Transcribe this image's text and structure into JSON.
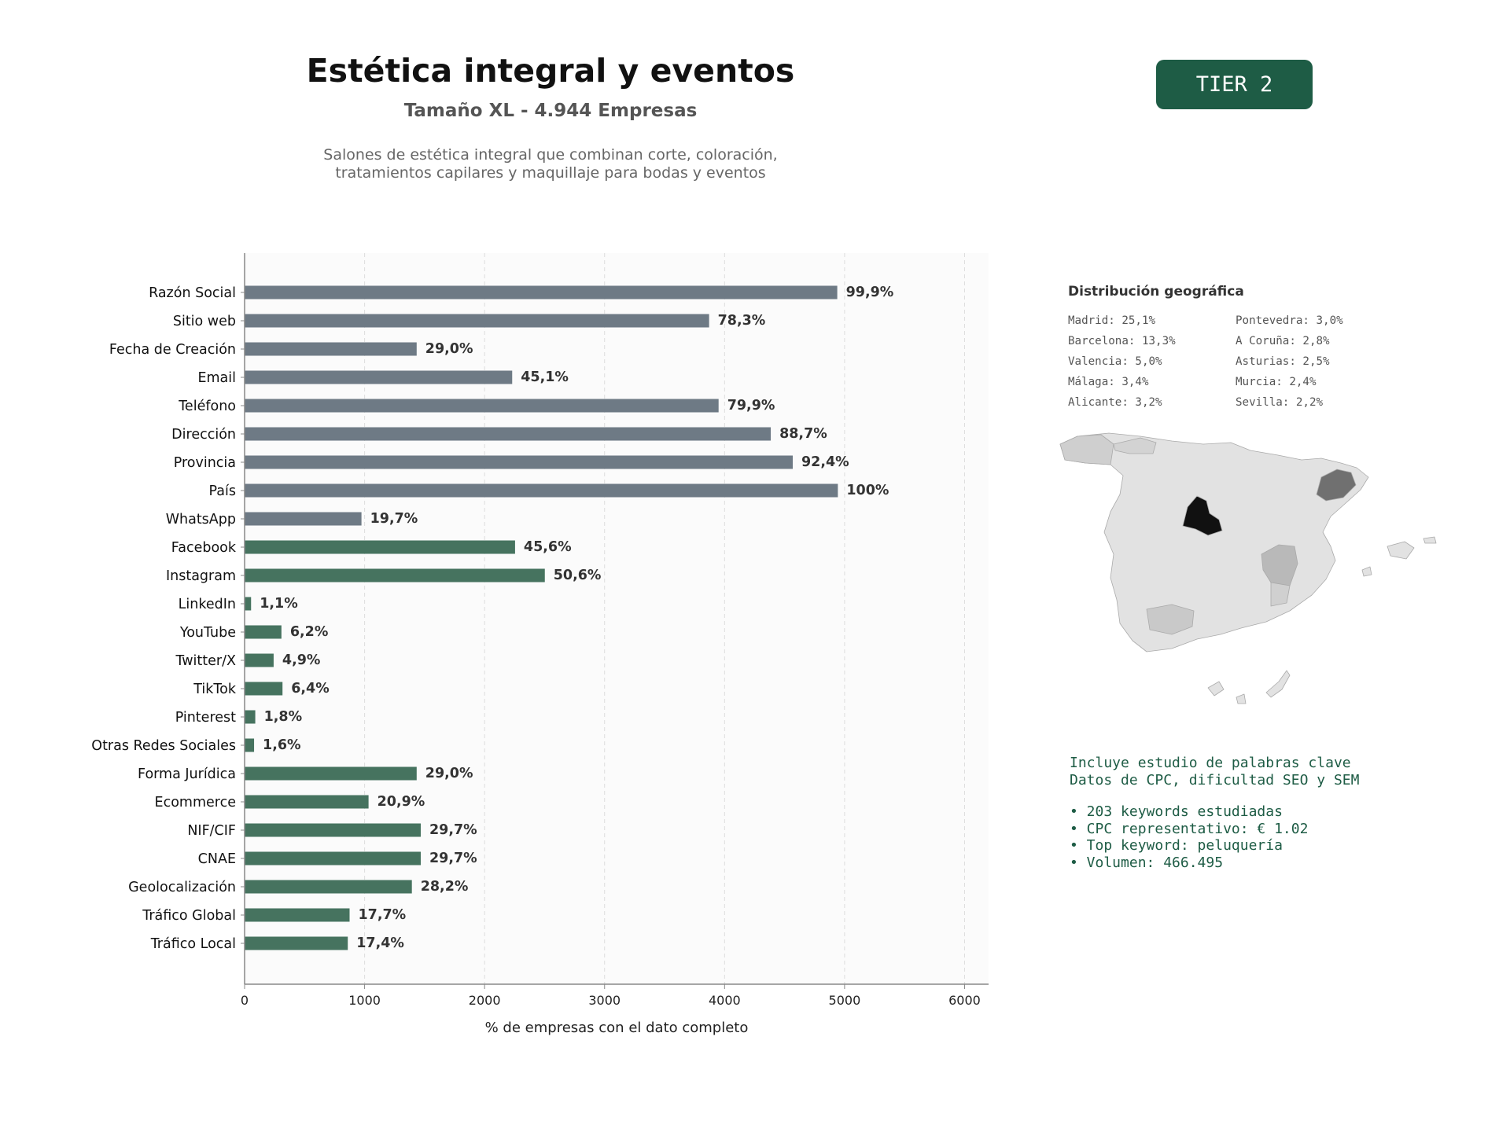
{
  "header": {
    "title": "Estética integral y eventos",
    "subtitle": "Tamaño XL - 4.944 Empresas",
    "description_line1": "Salones de estética integral que combinan corte, coloración,",
    "description_line2": "tratamientos capilares y maquillaje para bodas y eventos",
    "tier_label": "TIER 2",
    "tier_color": "#1e5c45"
  },
  "colors": {
    "contact_bar": "#6e7a85",
    "digital_bar": "#46735f",
    "plot_background": "#fbfbfb",
    "map_highlight": "#111111"
  },
  "chart_data": {
    "type": "bar",
    "orientation": "horizontal",
    "xlabel": "% de empresas con el dato completo",
    "xlim": [
      0,
      6200
    ],
    "xticks": [
      0,
      1000,
      2000,
      3000,
      4000,
      5000,
      6000
    ],
    "grid": "vertical dashed",
    "categories": [
      "Razón Social",
      "Sitio web",
      "Fecha de Creación",
      "Email",
      "Teléfono",
      "Dirección",
      "Provincia",
      "País",
      "WhatsApp",
      "Facebook",
      "Instagram",
      "LinkedIn",
      "YouTube",
      "Twitter/X",
      "TikTok",
      "Pinterest",
      "Otras Redes Sociales",
      "Forma Jurídica",
      "Ecommerce",
      "NIF/CIF",
      "CNAE",
      "Geolocalización",
      "Tráfico Global",
      "Tráfico Local"
    ],
    "values": [
      4939,
      3871,
      1434,
      2230,
      3950,
      4385,
      4568,
      4944,
      974,
      2254,
      2502,
      54,
      307,
      242,
      316,
      89,
      79,
      1434,
      1033,
      1468,
      1468,
      1394,
      875,
      860
    ],
    "labels": [
      "99,9%",
      "78,3%",
      "29,0%",
      "45,1%",
      "79,9%",
      "88,7%",
      "92,4%",
      "100%",
      "19,7%",
      "45,6%",
      "50,6%",
      "1,1%",
      "6,2%",
      "4,9%",
      "6,4%",
      "1,8%",
      "1,6%",
      "29,0%",
      "20,9%",
      "29,7%",
      "29,7%",
      "28,2%",
      "17,7%",
      "17,4%"
    ],
    "bar_groups": [
      "contact",
      "contact",
      "contact",
      "contact",
      "contact",
      "contact",
      "contact",
      "contact",
      "contact",
      "digital",
      "digital",
      "digital",
      "digital",
      "digital",
      "digital",
      "digital",
      "digital",
      "digital",
      "digital",
      "digital",
      "digital",
      "digital",
      "digital",
      "digital"
    ]
  },
  "geo": {
    "title": "Distribución geográfica",
    "items": [
      "Madrid: 25,1%",
      "Pontevedra: 3,0%",
      "Barcelona: 13,3%",
      "A Coruña: 2,8%",
      "Valencia: 5,0%",
      "Asturias: 2,5%",
      "Málaga: 3,4%",
      "Murcia: 2,4%",
      "Alicante: 3,2%",
      "Sevilla: 2,2%"
    ]
  },
  "keywords": {
    "line1": "Incluye estudio de palabras clave",
    "line2": "Datos de CPC, dificultad SEO y SEM",
    "bullets": [
      "• 203 keywords estudiadas",
      "• CPC representativo: € 1.02",
      "• Top keyword: peluquería",
      "• Volumen: 466.495"
    ]
  }
}
